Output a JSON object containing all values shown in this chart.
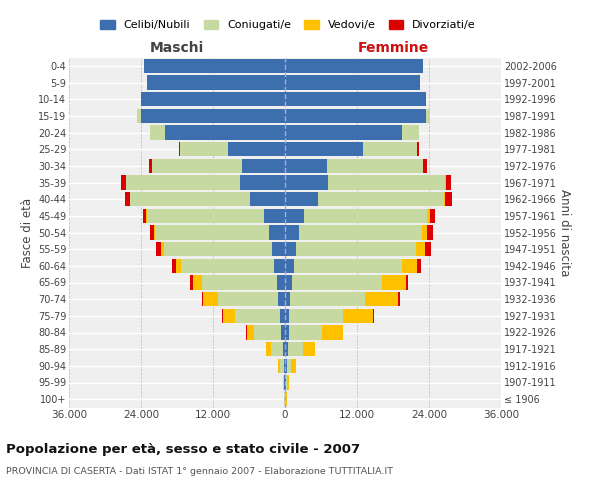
{
  "age_groups": [
    "100+",
    "95-99",
    "90-94",
    "85-89",
    "80-84",
    "75-79",
    "70-74",
    "65-69",
    "60-64",
    "55-59",
    "50-54",
    "45-49",
    "40-44",
    "35-39",
    "30-34",
    "25-29",
    "20-24",
    "15-19",
    "10-14",
    "5-9",
    "0-4"
  ],
  "birth_years": [
    "≤ 1906",
    "1907-1911",
    "1912-1916",
    "1917-1921",
    "1922-1926",
    "1927-1931",
    "1932-1936",
    "1937-1941",
    "1942-1946",
    "1947-1951",
    "1952-1956",
    "1957-1961",
    "1962-1966",
    "1967-1971",
    "1972-1976",
    "1977-1981",
    "1982-1986",
    "1987-1991",
    "1992-1996",
    "1997-2001",
    "2002-2006"
  ],
  "males_celibe": [
    50,
    100,
    200,
    400,
    700,
    900,
    1100,
    1400,
    1800,
    2200,
    2600,
    3500,
    5800,
    7500,
    7200,
    9500,
    20000,
    24000,
    24000,
    23000,
    23500
  ],
  "males_coniugato": [
    100,
    200,
    600,
    2000,
    4500,
    7500,
    10000,
    12500,
    15500,
    18000,
    19000,
    19500,
    20000,
    19000,
    15000,
    8000,
    2500,
    700,
    50,
    10,
    5
  ],
  "males_vedovo": [
    30,
    100,
    300,
    700,
    1200,
    2000,
    2500,
    1500,
    800,
    400,
    200,
    100,
    50,
    30,
    20,
    10,
    5,
    5,
    2,
    1,
    1
  ],
  "males_divorziato": [
    2,
    5,
    10,
    20,
    40,
    80,
    200,
    400,
    700,
    900,
    700,
    600,
    800,
    800,
    500,
    200,
    50,
    10,
    2,
    1,
    1
  ],
  "females_nubile": [
    50,
    100,
    250,
    500,
    600,
    700,
    900,
    1100,
    1500,
    1900,
    2400,
    3200,
    5500,
    7200,
    7000,
    13000,
    19500,
    23500,
    23500,
    22500,
    23000
  ],
  "females_coniugata": [
    100,
    200,
    700,
    2500,
    5500,
    9000,
    12500,
    15000,
    18000,
    20000,
    20500,
    20500,
    21000,
    19500,
    16000,
    9000,
    2800,
    700,
    50,
    10,
    5
  ],
  "females_vedova": [
    100,
    300,
    800,
    2000,
    3500,
    5000,
    5500,
    4000,
    2500,
    1500,
    800,
    400,
    200,
    100,
    50,
    20,
    10,
    5,
    2,
    1,
    1
  ],
  "females_divorziata": [
    2,
    5,
    15,
    30,
    60,
    100,
    250,
    450,
    700,
    900,
    900,
    900,
    1200,
    900,
    600,
    250,
    70,
    15,
    3,
    1,
    1
  ],
  "color_celibe": "#3d6faf",
  "color_coniugato": "#c5d9a0",
  "color_vedovo": "#ffc000",
  "color_divorziato": "#dd0000",
  "xlim": 36000,
  "title": "Popolazione per età, sesso e stato civile - 2007",
  "subtitle": "PROVINCIA DI CASERTA - Dati ISTAT 1° gennaio 2007 - Elaborazione TUTTITALIA.IT",
  "ylabel_left": "Fasce di età",
  "ylabel_right": "Anni di nascita",
  "label_maschi": "Maschi",
  "label_femmine": "Femmine",
  "legend_labels": [
    "Celibi/Nubili",
    "Coniugati/e",
    "Vedovi/e",
    "Divorziati/e"
  ],
  "xtick_vals": [
    -36000,
    -24000,
    -12000,
    0,
    12000,
    24000,
    36000
  ],
  "xtick_labels": [
    "36.000",
    "24.000",
    "12.000",
    "0",
    "12.000",
    "24.000",
    "36.000"
  ],
  "bg_color": "#ffffff",
  "plot_bg": "#efefef"
}
